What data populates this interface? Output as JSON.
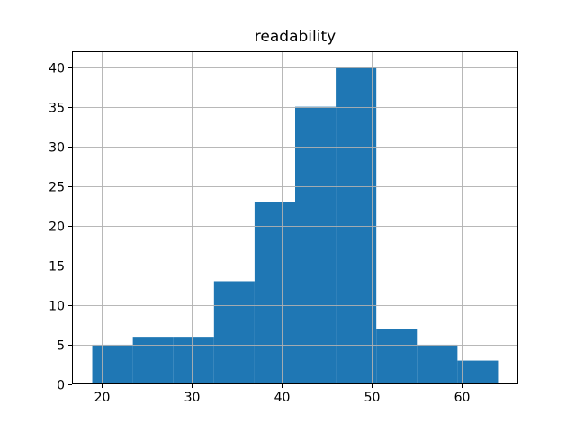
{
  "chart_data": {
    "type": "bar",
    "subtype": "histogram",
    "title": "readability",
    "xlabel": "",
    "ylabel": "",
    "bin_edges": [
      19,
      23.5,
      28,
      32.5,
      37,
      41.5,
      46,
      50.5,
      55,
      59.5,
      64
    ],
    "counts": [
      5,
      6,
      6,
      13,
      23,
      35,
      40,
      7,
      5,
      3
    ],
    "xlim": [
      16.75,
      66.25
    ],
    "ylim": [
      0,
      42
    ],
    "x_ticks": [
      20,
      30,
      40,
      50,
      60
    ],
    "y_ticks": [
      0,
      5,
      10,
      15,
      20,
      25,
      30,
      35,
      40
    ],
    "bar_color": "#1f77b4",
    "grid_color": "#b0b0b0",
    "axis_color": "#000000",
    "background_color": "#ffffff",
    "grid": true,
    "legend": false
  }
}
